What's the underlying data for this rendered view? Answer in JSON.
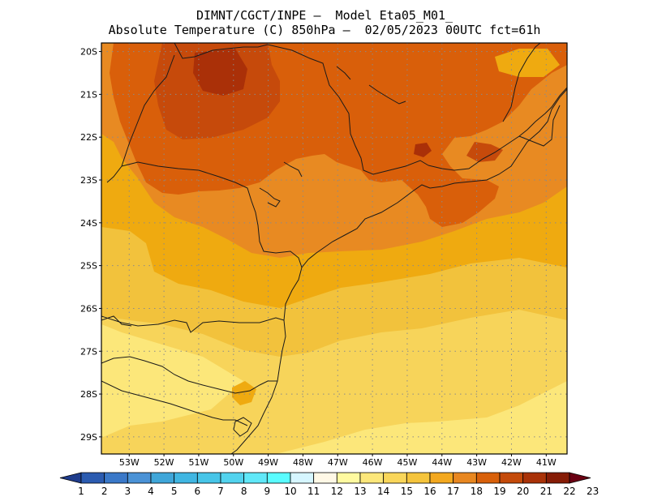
{
  "header": {
    "line1": "DIMNT/CGCT/INPE –  Model Eta05_M01_",
    "line2": "Absolute Temperature (C) 850hPa –  02/05/2023 00UTC fct=61h"
  },
  "map": {
    "lat_labels": [
      "20S",
      "21S",
      "22S",
      "23S",
      "24S",
      "25S",
      "26S",
      "27S",
      "28S",
      "29S"
    ],
    "lon_labels": [
      "53W",
      "52W",
      "51W",
      "50W",
      "49W",
      "48W",
      "47W",
      "46W",
      "45W",
      "44W",
      "43W",
      "42W",
      "41W"
    ],
    "lon_range": [
      -53.8,
      -40.4
    ],
    "lat_range": [
      -29.4,
      -19.8
    ],
    "grid": "dotted"
  },
  "legend": {
    "values": [
      "1",
      "2",
      "3",
      "4",
      "5",
      "6",
      "7",
      "8",
      "9",
      "10",
      "11",
      "12",
      "13",
      "14",
      "15",
      "16",
      "17",
      "18",
      "19",
      "20",
      "21",
      "22",
      "23"
    ],
    "colors": [
      "#1f3c8c",
      "#2b5bb0",
      "#3a78c8",
      "#4a92d6",
      "#3fa6d9",
      "#40b6e2",
      "#47c5e8",
      "#52d3ee",
      "#60e8f8",
      "#5afcff",
      "#d6f6ff",
      "#fff8e6",
      "#fffaa0",
      "#fce77a",
      "#f9d65a",
      "#f5c43c",
      "#f3a81f",
      "#e88720",
      "#d8600a",
      "#c44a0a",
      "#a93208",
      "#861c06",
      "#6a0012"
    ]
  },
  "colors": {
    "t13": "#fce77a",
    "t14": "#f7d45a",
    "t15": "#f2c23c",
    "t16": "#efaa10",
    "t17": "#e88a22",
    "t18": "#d95f0a",
    "t19": "#c64a0b",
    "t20": "#aa3008"
  }
}
